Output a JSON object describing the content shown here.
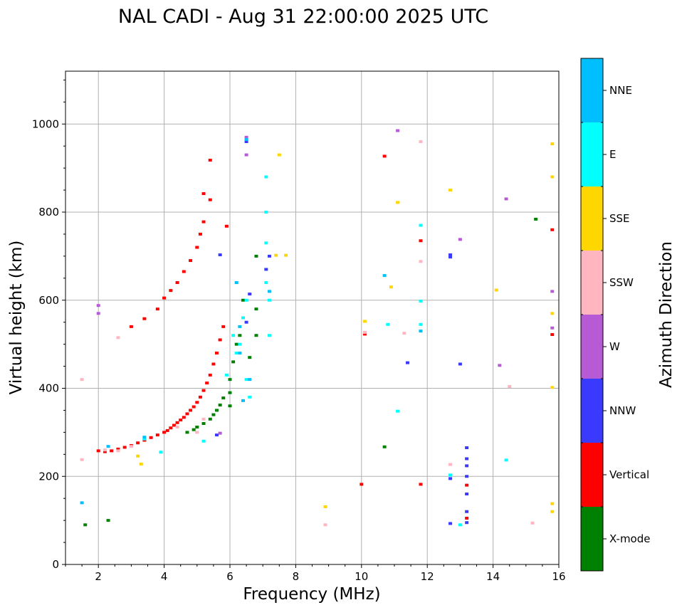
{
  "chart_data": {
    "type": "scatter",
    "title": "NAL CADI - Aug 31 22:00:00 2025 UTC",
    "xlabel": "Frequency (MHz)",
    "ylabel": "Virtual height (km)",
    "xlim": [
      1,
      16
    ],
    "ylim": [
      0,
      1120
    ],
    "xticks": [
      2,
      4,
      6,
      8,
      10,
      12,
      14,
      16
    ],
    "yticks": [
      0,
      200,
      400,
      600,
      800,
      1000
    ],
    "xtick_labels": [
      "2",
      "4",
      "6",
      "8",
      "10",
      "12",
      "14",
      "16"
    ],
    "ytick_labels": [
      "0",
      "200",
      "400",
      "600",
      "800",
      "1000"
    ],
    "grid": true,
    "colorbar": {
      "label": "Azimuth Direction",
      "position": "right",
      "categories": [
        {
          "name": "X-mode",
          "color": "#008000"
        },
        {
          "name": "Vertical",
          "color": "#ff0000"
        },
        {
          "name": "NNW",
          "color": "#3a3aff"
        },
        {
          "name": "W",
          "color": "#b65ad6"
        },
        {
          "name": "SSW",
          "color": "#ffb6c1"
        },
        {
          "name": "SSE",
          "color": "#ffd700"
        },
        {
          "name": "E",
          "color": "#00ffff"
        },
        {
          "name": "NNE",
          "color": "#00bfff"
        }
      ]
    },
    "series": [
      {
        "name": "Vertical",
        "points": [
          [
            2.0,
            258
          ],
          [
            2.2,
            256
          ],
          [
            2.4,
            258
          ],
          [
            2.6,
            262
          ],
          [
            2.8,
            266
          ],
          [
            3.0,
            270
          ],
          [
            3.2,
            276
          ],
          [
            3.4,
            282
          ],
          [
            3.6,
            288
          ],
          [
            3.8,
            294
          ],
          [
            4.0,
            300
          ],
          [
            4.1,
            304
          ],
          [
            4.2,
            310
          ],
          [
            4.3,
            316
          ],
          [
            4.4,
            322
          ],
          [
            4.5,
            328
          ],
          [
            4.6,
            334
          ],
          [
            4.7,
            342
          ],
          [
            4.8,
            350
          ],
          [
            4.9,
            358
          ],
          [
            5.0,
            368
          ],
          [
            5.1,
            380
          ],
          [
            5.2,
            395
          ],
          [
            5.3,
            412
          ],
          [
            5.4,
            430
          ],
          [
            5.5,
            455
          ],
          [
            5.6,
            480
          ],
          [
            5.7,
            510
          ],
          [
            5.8,
            540
          ],
          [
            3.0,
            540
          ],
          [
            3.4,
            558
          ],
          [
            3.8,
            580
          ],
          [
            4.0,
            605
          ],
          [
            4.2,
            622
          ],
          [
            4.4,
            640
          ],
          [
            4.6,
            665
          ],
          [
            4.8,
            690
          ],
          [
            5.0,
            720
          ],
          [
            5.1,
            750
          ],
          [
            5.2,
            778
          ],
          [
            5.2,
            842
          ],
          [
            5.4,
            828
          ],
          [
            5.4,
            918
          ],
          [
            5.9,
            768
          ],
          [
            13.2,
            180
          ],
          [
            13.2,
            105
          ],
          [
            10.0,
            182
          ],
          [
            11.8,
            182
          ],
          [
            10.7,
            927
          ],
          [
            10.1,
            523
          ],
          [
            11.8,
            735
          ],
          [
            15.8,
            760
          ],
          [
            15.8,
            522
          ]
        ]
      },
      {
        "name": "X-mode",
        "points": [
          [
            4.7,
            300
          ],
          [
            4.9,
            306
          ],
          [
            5.0,
            312
          ],
          [
            5.2,
            320
          ],
          [
            5.4,
            330
          ],
          [
            5.5,
            340
          ],
          [
            5.6,
            350
          ],
          [
            5.7,
            362
          ],
          [
            5.8,
            378
          ],
          [
            6.0,
            360
          ],
          [
            6.0,
            390
          ],
          [
            6.0,
            420
          ],
          [
            6.1,
            460
          ],
          [
            6.2,
            500
          ],
          [
            6.3,
            520
          ],
          [
            6.4,
            560
          ],
          [
            6.4,
            600
          ],
          [
            6.6,
            470
          ],
          [
            6.8,
            580
          ],
          [
            6.8,
            520
          ],
          [
            6.8,
            700
          ],
          [
            10.7,
            267
          ],
          [
            15.3,
            784
          ],
          [
            2.3,
            100
          ],
          [
            1.6,
            90
          ]
        ]
      },
      {
        "name": "NNW",
        "points": [
          [
            13.2,
            265
          ],
          [
            13.2,
            240
          ],
          [
            13.2,
            224
          ],
          [
            13.2,
            200
          ],
          [
            13.2,
            160
          ],
          [
            13.2,
            120
          ],
          [
            13.2,
            95
          ],
          [
            12.7,
            93
          ],
          [
            12.7,
            195
          ],
          [
            12.7,
            698
          ],
          [
            12.7,
            703
          ],
          [
            13.0,
            455
          ],
          [
            11.4,
            458
          ],
          [
            6.6,
            614
          ],
          [
            7.1,
            670
          ],
          [
            7.2,
            700
          ],
          [
            6.5,
            550
          ],
          [
            5.7,
            703
          ],
          [
            5.6,
            294
          ],
          [
            6.5,
            960
          ]
        ]
      },
      {
        "name": "W",
        "points": [
          [
            6.5,
            930
          ],
          [
            6.5,
            970
          ],
          [
            11.1,
            985
          ],
          [
            13.0,
            738
          ],
          [
            14.2,
            452
          ],
          [
            14.4,
            830
          ],
          [
            15.8,
            620
          ],
          [
            15.8,
            537
          ],
          [
            2.0,
            588
          ],
          [
            2.0,
            570
          ],
          [
            5.7,
            298
          ]
        ]
      },
      {
        "name": "SSW",
        "points": [
          [
            2.2,
            260
          ],
          [
            2.6,
            258
          ],
          [
            3.0,
            268
          ],
          [
            4.4,
            312
          ],
          [
            5.0,
            300
          ],
          [
            5.2,
            330
          ],
          [
            8.9,
            90
          ],
          [
            12.7,
            227
          ],
          [
            14.5,
            404
          ],
          [
            15.2,
            94
          ],
          [
            11.8,
            960
          ],
          [
            11.3,
            525
          ],
          [
            11.8,
            688
          ],
          [
            1.5,
            420
          ],
          [
            1.5,
            238
          ],
          [
            2.6,
            515
          ],
          [
            10.1,
            527
          ]
        ]
      },
      {
        "name": "SSE",
        "points": [
          [
            8.9,
            131
          ],
          [
            10.1,
            552
          ],
          [
            10.9,
            630
          ],
          [
            11.1,
            822
          ],
          [
            12.7,
            850
          ],
          [
            14.1,
            623
          ],
          [
            15.8,
            955
          ],
          [
            15.8,
            880
          ],
          [
            15.8,
            570
          ],
          [
            15.8,
            402
          ],
          [
            15.8,
            138
          ],
          [
            15.8,
            120
          ],
          [
            7.5,
            930
          ],
          [
            7.7,
            702
          ],
          [
            7.4,
            702
          ],
          [
            3.3,
            228
          ],
          [
            3.2,
            246
          ]
        ]
      },
      {
        "name": "E",
        "points": [
          [
            6.2,
            480
          ],
          [
            6.3,
            500
          ],
          [
            6.4,
            560
          ],
          [
            6.5,
            600
          ],
          [
            6.5,
            420
          ],
          [
            6.6,
            380
          ],
          [
            7.1,
            880
          ],
          [
            7.1,
            800
          ],
          [
            7.1,
            730
          ],
          [
            7.1,
            640
          ],
          [
            7.2,
            600
          ],
          [
            7.2,
            520
          ],
          [
            5.2,
            280
          ],
          [
            3.4,
            285
          ],
          [
            3.9,
            255
          ],
          [
            10.8,
            545
          ],
          [
            11.1,
            348
          ],
          [
            11.8,
            598
          ],
          [
            11.8,
            770
          ],
          [
            11.8,
            545
          ],
          [
            14.4,
            237
          ],
          [
            12.7,
            203
          ],
          [
            13.0,
            90
          ],
          [
            5.9,
            430
          ],
          [
            6.1,
            520
          ]
        ]
      },
      {
        "name": "NNE",
        "points": [
          [
            6.3,
            540
          ],
          [
            6.3,
            480
          ],
          [
            6.4,
            372
          ],
          [
            6.6,
            420
          ],
          [
            6.2,
            640
          ],
          [
            7.2,
            620
          ],
          [
            6.5,
            965
          ],
          [
            10.7,
            656
          ],
          [
            11.8,
            530
          ],
          [
            2.3,
            268
          ],
          [
            3.4,
            289
          ],
          [
            1.5,
            140
          ]
        ]
      }
    ]
  }
}
